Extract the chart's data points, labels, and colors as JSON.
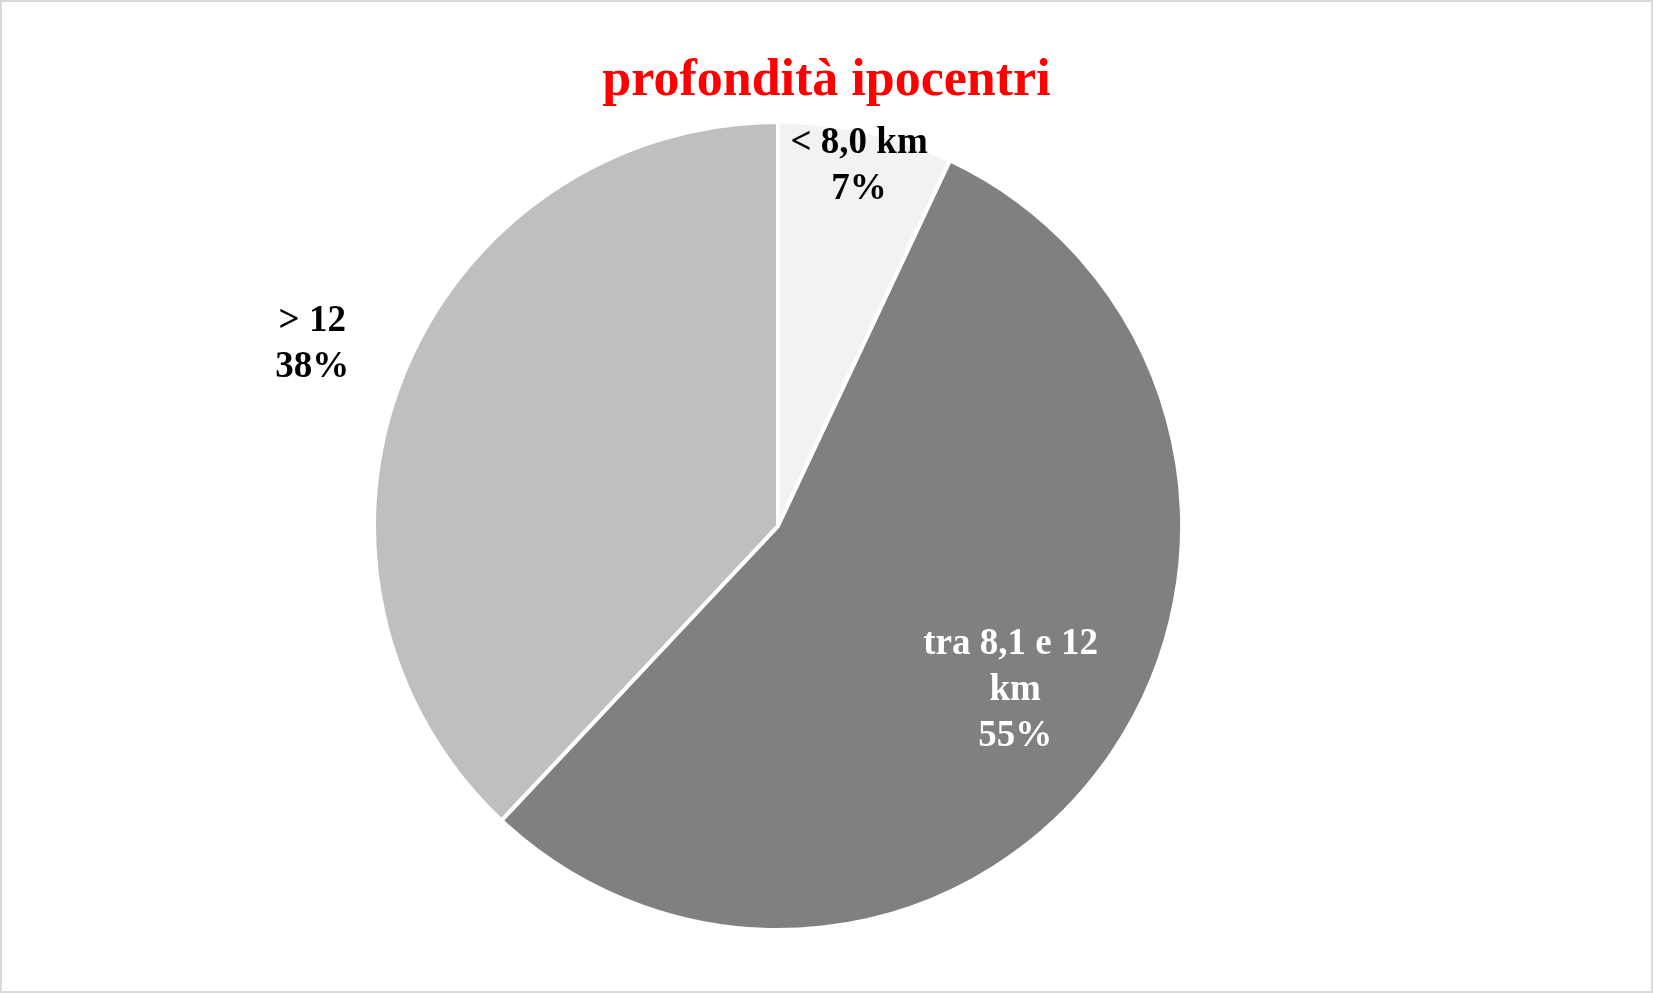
{
  "chart_data": {
    "type": "pie",
    "title": "profondità ipocentri",
    "categories": [
      "< 8,0 km",
      "tra 8,1 e 12 km",
      "> 12"
    ],
    "values": [
      7,
      55,
      38
    ],
    "colors": [
      "#f2f2f2",
      "#808080",
      "#bfbfbf"
    ],
    "value_labels": [
      "7%",
      "55%",
      "38%"
    ]
  }
}
